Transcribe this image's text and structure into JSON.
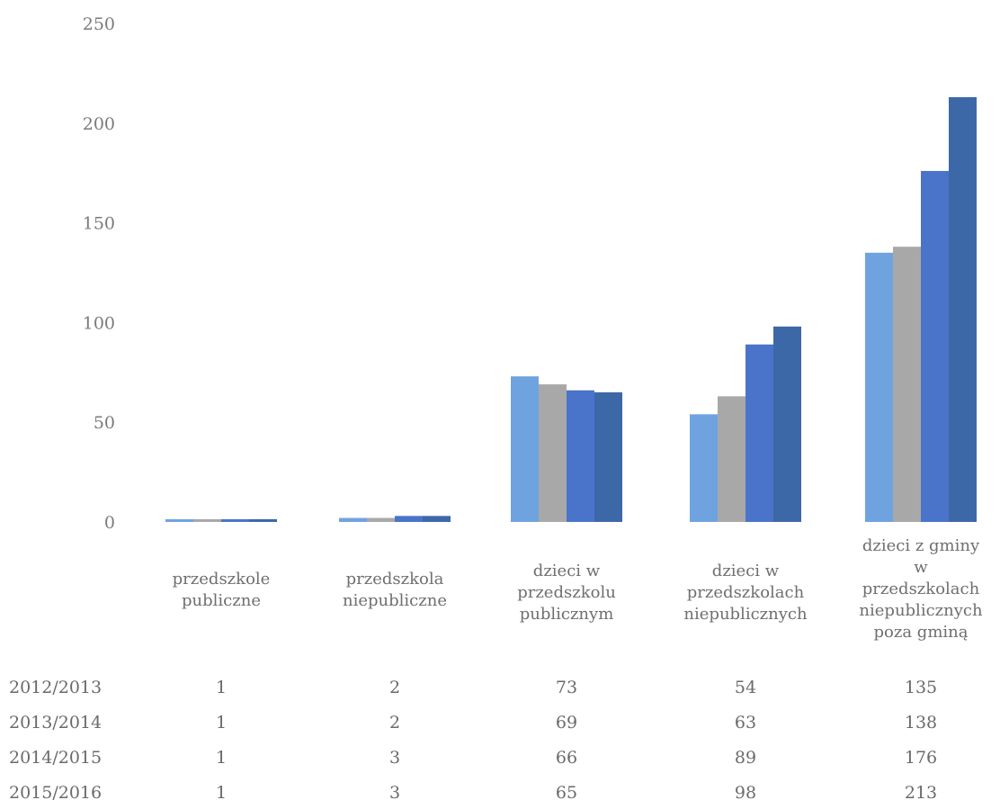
{
  "chart_data": {
    "type": "bar",
    "title": "",
    "xlabel": "",
    "ylabel": "",
    "ylim": [
      0,
      250
    ],
    "yticks": [
      "0",
      "50",
      "100",
      "150",
      "200",
      "250"
    ],
    "grid": false,
    "legend": "data-table-below",
    "categories": [
      [
        "przedszkole",
        "publiczne"
      ],
      [
        "przedszkola",
        "niepubliczne"
      ],
      [
        "dzieci w",
        "przedszkolu",
        "publicznym"
      ],
      [
        "dzieci w",
        "przedszkolach",
        "niepublicznych"
      ],
      [
        "dzieci z gminy",
        "w",
        "przedszkolach",
        "niepublicznych",
        "poza gminą"
      ]
    ],
    "series": [
      {
        "name": "2012/2013",
        "color": "#6fa3e0",
        "values": [
          1,
          2,
          73,
          54,
          135
        ],
        "labels": [
          "1",
          "2",
          "73",
          "54",
          "135"
        ]
      },
      {
        "name": "2013/2014",
        "color": "#a8a8a8",
        "values": [
          1,
          2,
          69,
          63,
          138
        ],
        "labels": [
          "1",
          "2",
          "69",
          "63",
          "138"
        ]
      },
      {
        "name": "2014/2015",
        "color": "#4a74c9",
        "values": [
          1,
          3,
          66,
          89,
          176
        ],
        "labels": [
          "1",
          "3",
          "66",
          "89",
          "176"
        ]
      },
      {
        "name": "2015/2016",
        "color": "#3d68a8",
        "values": [
          1,
          3,
          65,
          98,
          213
        ],
        "labels": [
          "1",
          "3",
          "65",
          "98",
          "213"
        ]
      }
    ]
  }
}
